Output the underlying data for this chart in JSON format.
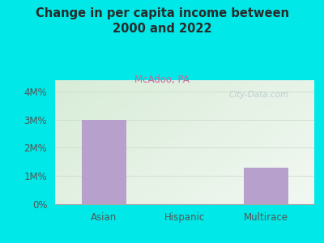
{
  "title": "Change in per capita income between\n2000 and 2022",
  "subtitle": "McAdoo, PA",
  "categories": [
    "Asian",
    "Hispanic",
    "Multirace"
  ],
  "values": [
    3.0,
    0.0,
    1.3
  ],
  "bar_color": "#b8a0cc",
  "background_color": "#00e8e8",
  "plot_bg_color_topleft": "#d8ecd8",
  "plot_bg_color_right": "#f2f8f2",
  "title_color": "#2a2a2a",
  "subtitle_color": "#cc6699",
  "axis_label_color": "#444444",
  "tick_label_color": "#555555",
  "ytick_labels": [
    "0%",
    "1M%",
    "2M%",
    "3M%",
    "4M%"
  ],
  "ytick_values": [
    0,
    1,
    2,
    3,
    4
  ],
  "ylim": [
    0,
    4.4
  ],
  "watermark": "City-Data.com",
  "grid_color": "#ccddcc"
}
